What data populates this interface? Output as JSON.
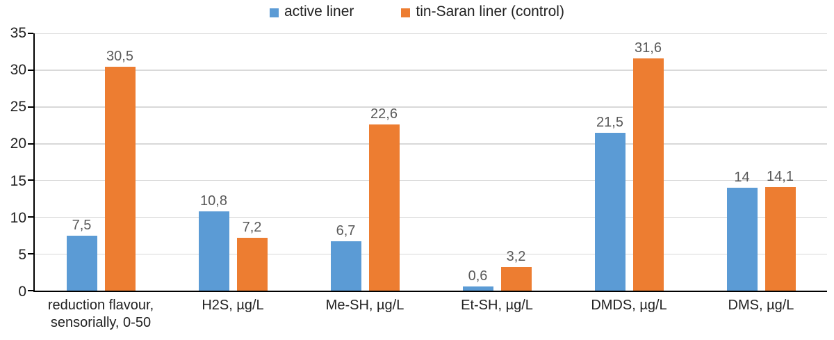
{
  "chart_data": {
    "type": "bar",
    "title": "",
    "xlabel": "",
    "ylabel": "",
    "categories": [
      "reduction flavour, sensorially, 0-50",
      "H2S, µg/L",
      "Me-SH, µg/L",
      "Et-SH, µg/L",
      "DMDS, µg/L",
      "DMS, µg/L"
    ],
    "series": [
      {
        "name": "active liner",
        "color": "#5B9BD5",
        "values": [
          7.5,
          10.8,
          6.7,
          0.6,
          21.5,
          14
        ],
        "labels": [
          "7,5",
          "10,8",
          "6,7",
          "0,6",
          "21,5",
          "14"
        ]
      },
      {
        "name": "tin-Saran liner (control)",
        "color": "#ED7D31",
        "values": [
          30.5,
          7.2,
          22.6,
          3.2,
          31.6,
          14.1
        ],
        "labels": [
          "30,5",
          "7,2",
          "22,6",
          "3,2",
          "31,6",
          "14,1"
        ]
      }
    ],
    "ylim": [
      0,
      35
    ],
    "yticks": [
      0,
      5,
      10,
      15,
      20,
      25,
      30,
      35
    ],
    "grid": true,
    "legend_position": "top"
  },
  "colors": {
    "background": "#FFFFFF",
    "gridline": "#D9D9D9",
    "axis_line": "#000000",
    "tick_text": "#212121",
    "category_text": "#212121",
    "data_label_text": "#595959",
    "legend_text": "#212121"
  }
}
